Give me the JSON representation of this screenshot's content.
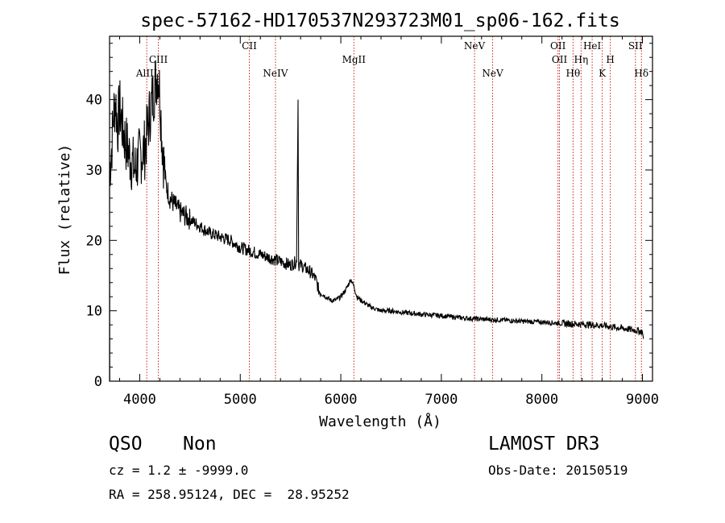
{
  "chart_data": {
    "type": "line",
    "title": "spec-57162-HD170537N293723M01_sp06-162.fits",
    "xlabel": "Wavelength (Å)",
    "ylabel": "Flux (relative)",
    "xlim": [
      3700,
      9100
    ],
    "ylim": [
      0,
      49
    ],
    "xticks": [
      4000,
      5000,
      6000,
      7000,
      8000,
      9000
    ],
    "xtick_labels": [
      "4000",
      "5000",
      "6000",
      "7000",
      "8000",
      "9000"
    ],
    "yticks": [
      0,
      10,
      20,
      30,
      40
    ],
    "ytick_labels": [
      "0",
      "10",
      "20",
      "30",
      "40"
    ],
    "series": [
      {
        "name": "spectrum",
        "x": [
          3700,
          3720,
          3740,
          3760,
          3780,
          3800,
          3830,
          3860,
          3900,
          3950,
          4000,
          4050,
          4100,
          4150,
          4180,
          4200,
          4220,
          4240,
          4260,
          4300,
          4350,
          4400,
          4500,
          4600,
          4700,
          4800,
          4900,
          5000,
          5100,
          5200,
          5300,
          5400,
          5500,
          5560,
          5575,
          5580,
          5600,
          5650,
          5700,
          5750,
          5780,
          5800,
          5850,
          5900,
          5950,
          6000,
          6050,
          6100,
          6130,
          6160,
          6200,
          6250,
          6300,
          6400,
          6500,
          6600,
          6800,
          7000,
          7200,
          7400,
          7600,
          7800,
          8000,
          8200,
          8400,
          8600,
          8800,
          8950,
          9000,
          9010
        ],
        "y": [
          30,
          33,
          38,
          40,
          36,
          39,
          36,
          34,
          32,
          30,
          32,
          33,
          38,
          42,
          44,
          41,
          35,
          31,
          28,
          26,
          25,
          24,
          23,
          22,
          21,
          20.5,
          20,
          19,
          18.5,
          18,
          17.5,
          17,
          16.5,
          17,
          40,
          16.5,
          16.5,
          16,
          15.5,
          14.5,
          13,
          12.5,
          12,
          11.5,
          11.5,
          12,
          13,
          14.5,
          13.5,
          12,
          11.5,
          11,
          10.5,
          10,
          10,
          9.8,
          9.5,
          9.3,
          9,
          8.8,
          8.7,
          8.5,
          8.4,
          8.2,
          8.1,
          7.9,
          7.5,
          7.2,
          7.0,
          6.0
        ]
      }
    ],
    "lines": [
      {
        "name": "AlIII",
        "x": 4070,
        "row": 2
      },
      {
        "name": "CIII",
        "x": 4185,
        "row": 1
      },
      {
        "name": "CII",
        "x": 5090,
        "row": 0
      },
      {
        "name": "NeIV",
        "x": 5350,
        "row": 2
      },
      {
        "name": "MgII",
        "x": 6130,
        "row": 1
      },
      {
        "name": "NeV",
        "x": 7330,
        "row": 0
      },
      {
        "name": "NeV",
        "x": 7510,
        "row": 2
      },
      {
        "name": "OII",
        "x": 8160,
        "row": 0
      },
      {
        "name": "OII",
        "x": 8175,
        "row": 1
      },
      {
        "name": "Hθ",
        "x": 8310,
        "row": 2
      },
      {
        "name": "Hη",
        "x": 8390,
        "row": 1
      },
      {
        "name": "HeI",
        "x": 8500,
        "row": 0
      },
      {
        "name": "K",
        "x": 8600,
        "row": 2
      },
      {
        "name": "H",
        "x": 8680,
        "row": 1
      },
      {
        "name": "SII",
        "x": 8930,
        "row": 0
      },
      {
        "name": "Hδ",
        "x": 8990,
        "row": 2
      }
    ]
  },
  "info": {
    "class": "QSO",
    "subclass": "Non",
    "survey": "LAMOST DR3",
    "cz": "cz = 1.2 ± -9999.0",
    "obs_date": "Obs-Date: 20150519",
    "coords": "RA = 258.95124, DEC =  28.95252"
  },
  "colors": {
    "line_marker": "#cc2222",
    "spectrum": "#000000",
    "axis": "#000000"
  }
}
